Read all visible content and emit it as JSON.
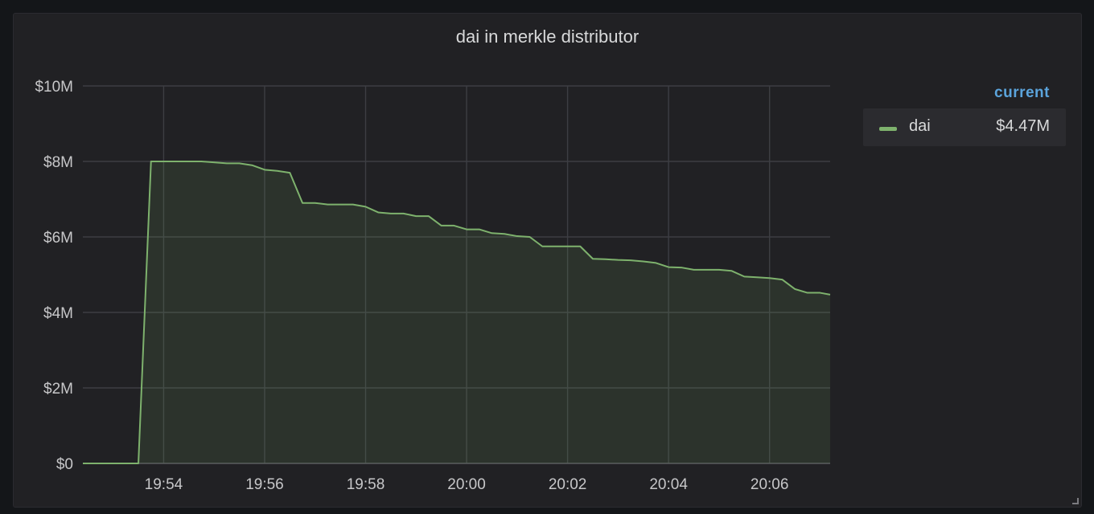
{
  "panel": {
    "title": "dai in merkle distributor"
  },
  "legend": {
    "header": "current",
    "items": [
      {
        "name": "dai",
        "value": "$4.47M",
        "color": "#7eb26d"
      }
    ]
  },
  "chart_data": {
    "type": "area",
    "title": "dai in merkle distributor",
    "xlabel": "",
    "ylabel": "",
    "x_unit": "time (HH:MM)",
    "xlim": [
      "19:52:24",
      "20:07:12"
    ],
    "ylim": [
      0,
      10000000
    ],
    "y_ticks": [
      {
        "value": 0,
        "label": "$0"
      },
      {
        "value": 2000000,
        "label": "$2M"
      },
      {
        "value": 4000000,
        "label": "$4M"
      },
      {
        "value": 6000000,
        "label": "$6M"
      },
      {
        "value": 8000000,
        "label": "$8M"
      },
      {
        "value": 10000000,
        "label": "$10M"
      }
    ],
    "x_ticks": [
      {
        "value": "19:54:00",
        "label": "19:54"
      },
      {
        "value": "19:56:00",
        "label": "19:56"
      },
      {
        "value": "19:58:00",
        "label": "19:58"
      },
      {
        "value": "20:00:00",
        "label": "20:00"
      },
      {
        "value": "20:02:00",
        "label": "20:02"
      },
      {
        "value": "20:04:00",
        "label": "20:04"
      },
      {
        "value": "20:06:00",
        "label": "20:06"
      }
    ],
    "grid": true,
    "legend_position": "right",
    "series": [
      {
        "name": "dai",
        "color": "#7eb26d",
        "fill": true,
        "points": [
          [
            "19:52:24",
            0
          ],
          [
            "19:53:30",
            0
          ],
          [
            "19:53:45",
            8000000
          ],
          [
            "19:54:45",
            8000000
          ],
          [
            "19:55:15",
            7950000
          ],
          [
            "19:55:30",
            7950000
          ],
          [
            "19:55:45",
            7900000
          ],
          [
            "19:56:00",
            7780000
          ],
          [
            "19:56:15",
            7750000
          ],
          [
            "19:56:30",
            7700000
          ],
          [
            "19:56:45",
            6900000
          ],
          [
            "19:57:00",
            6900000
          ],
          [
            "19:57:15",
            6860000
          ],
          [
            "19:57:45",
            6860000
          ],
          [
            "19:58:00",
            6800000
          ],
          [
            "19:58:15",
            6650000
          ],
          [
            "19:58:30",
            6620000
          ],
          [
            "19:58:45",
            6620000
          ],
          [
            "19:59:00",
            6550000
          ],
          [
            "19:59:15",
            6550000
          ],
          [
            "19:59:30",
            6300000
          ],
          [
            "19:59:45",
            6300000
          ],
          [
            "20:00:00",
            6200000
          ],
          [
            "20:00:15",
            6200000
          ],
          [
            "20:00:30",
            6100000
          ],
          [
            "20:00:45",
            6080000
          ],
          [
            "20:01:00",
            6020000
          ],
          [
            "20:01:15",
            6000000
          ],
          [
            "20:01:30",
            5750000
          ],
          [
            "20:02:15",
            5750000
          ],
          [
            "20:02:30",
            5420000
          ],
          [
            "20:02:45",
            5410000
          ],
          [
            "20:03:00",
            5390000
          ],
          [
            "20:03:15",
            5380000
          ],
          [
            "20:03:30",
            5350000
          ],
          [
            "20:03:45",
            5310000
          ],
          [
            "20:04:00",
            5200000
          ],
          [
            "20:04:15",
            5190000
          ],
          [
            "20:04:30",
            5130000
          ],
          [
            "20:05:00",
            5130000
          ],
          [
            "20:05:15",
            5100000
          ],
          [
            "20:05:30",
            4950000
          ],
          [
            "20:05:45",
            4930000
          ],
          [
            "20:06:00",
            4910000
          ],
          [
            "20:06:15",
            4870000
          ],
          [
            "20:06:30",
            4620000
          ],
          [
            "20:06:45",
            4520000
          ],
          [
            "20:07:00",
            4520000
          ],
          [
            "20:07:12",
            4470000
          ]
        ]
      }
    ]
  }
}
